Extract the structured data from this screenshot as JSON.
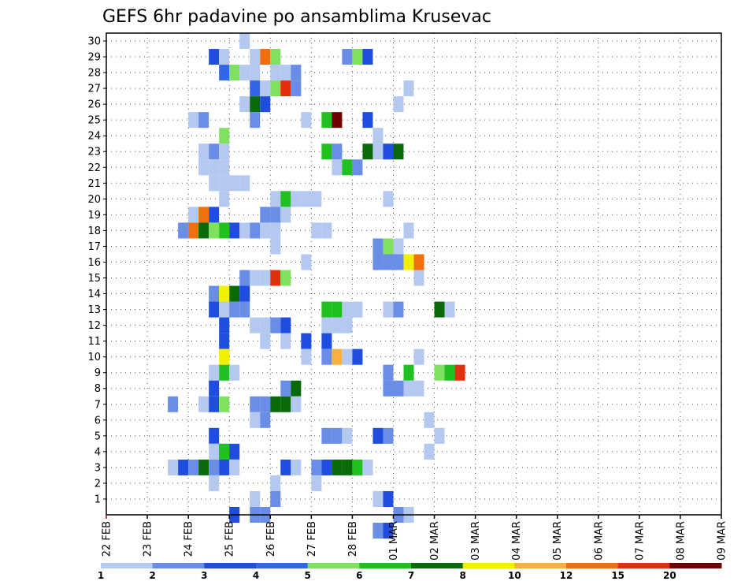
{
  "chart_data": {
    "type": "heatmap",
    "title": "GEFS 6hr padavine po ansamblima Krusevac",
    "y_ticks": [
      "1",
      "2",
      "3",
      "4",
      "5",
      "6",
      "7",
      "8",
      "9",
      "10",
      "11",
      "12",
      "13",
      "14",
      "15",
      "16",
      "17",
      "18",
      "19",
      "20",
      "21",
      "22",
      "23",
      "24",
      "25",
      "26",
      "27",
      "28",
      "29",
      "30"
    ],
    "ylim": [
      0,
      30
    ],
    "x_ticks": [
      "22 FEB",
      "23 FEB",
      "24 FEB",
      "25 FEB",
      "26 FEB",
      "27 FEB",
      "28 FEB",
      "01 MAR",
      "02 MAR",
      "03 MAR",
      "04 MAR",
      "05 MAR",
      "06 MAR",
      "07 MAR",
      "08 MAR",
      "09 MAR"
    ],
    "x_steps_per_day": 4,
    "xlim_steps": [
      0,
      60
    ],
    "grid": true,
    "legend": {
      "placement": "bottom",
      "labels": [
        "1",
        "2",
        "3",
        "4",
        "5",
        "6",
        "7",
        "8",
        "10",
        "12",
        "15",
        "20"
      ],
      "colors": [
        "#b4c8f0",
        "#6a8ee6",
        "#1f4de0",
        "#3366e6",
        "#80e060",
        "#20c020",
        "#0a6a0a",
        "#f0f000",
        "#f8b040",
        "#f07010",
        "#e03010",
        "#700000"
      ]
    },
    "cells": [
      [
        13,
        30,
        0
      ],
      [
        10,
        29,
        2
      ],
      [
        11,
        29,
        0
      ],
      [
        14,
        29,
        0
      ],
      [
        15,
        29,
        9
      ],
      [
        16,
        29,
        4
      ],
      [
        23,
        29,
        1
      ],
      [
        24,
        29,
        4
      ],
      [
        25,
        29,
        2
      ],
      [
        11,
        28,
        3
      ],
      [
        12,
        28,
        4
      ],
      [
        13,
        28,
        0
      ],
      [
        14,
        28,
        0
      ],
      [
        16,
        28,
        0
      ],
      [
        17,
        28,
        0
      ],
      [
        18,
        28,
        1
      ],
      [
        14,
        27,
        3
      ],
      [
        15,
        27,
        0
      ],
      [
        16,
        27,
        4
      ],
      [
        17,
        27,
        10
      ],
      [
        18,
        27,
        1
      ],
      [
        29,
        27,
        0
      ],
      [
        13,
        26,
        0
      ],
      [
        14,
        26,
        6
      ],
      [
        15,
        26,
        2
      ],
      [
        28,
        26,
        0
      ],
      [
        8,
        25,
        0
      ],
      [
        9,
        25,
        1
      ],
      [
        14,
        25,
        1
      ],
      [
        19,
        25,
        0
      ],
      [
        21,
        25,
        5
      ],
      [
        22,
        25,
        11
      ],
      [
        25,
        25,
        2
      ],
      [
        11,
        24,
        4
      ],
      [
        26,
        24,
        0
      ],
      [
        9,
        23,
        0
      ],
      [
        10,
        23,
        1
      ],
      [
        11,
        23,
        0
      ],
      [
        21,
        23,
        5
      ],
      [
        22,
        23,
        1
      ],
      [
        25,
        23,
        6
      ],
      [
        26,
        23,
        0
      ],
      [
        27,
        23,
        2
      ],
      [
        28,
        23,
        6
      ],
      [
        9,
        22,
        0
      ],
      [
        10,
        22,
        0
      ],
      [
        11,
        22,
        0
      ],
      [
        22,
        22,
        0
      ],
      [
        23,
        22,
        5
      ],
      [
        24,
        22,
        1
      ],
      [
        10,
        21,
        0
      ],
      [
        11,
        21,
        0
      ],
      [
        12,
        21,
        0
      ],
      [
        13,
        21,
        0
      ],
      [
        11,
        20,
        0
      ],
      [
        16,
        20,
        0
      ],
      [
        17,
        20,
        5
      ],
      [
        18,
        20,
        0
      ],
      [
        19,
        20,
        0
      ],
      [
        20,
        20,
        0
      ],
      [
        27,
        20,
        0
      ],
      [
        8,
        19,
        0
      ],
      [
        9,
        19,
        9
      ],
      [
        10,
        19,
        2
      ],
      [
        15,
        19,
        1
      ],
      [
        16,
        19,
        1
      ],
      [
        17,
        19,
        0
      ],
      [
        7,
        18,
        1
      ],
      [
        8,
        18,
        9
      ],
      [
        9,
        18,
        6
      ],
      [
        10,
        18,
        4
      ],
      [
        11,
        18,
        5
      ],
      [
        12,
        18,
        2
      ],
      [
        13,
        18,
        0
      ],
      [
        14,
        18,
        1
      ],
      [
        15,
        18,
        0
      ],
      [
        16,
        18,
        0
      ],
      [
        20,
        18,
        0
      ],
      [
        21,
        18,
        0
      ],
      [
        29,
        18,
        0
      ],
      [
        16,
        17,
        0
      ],
      [
        26,
        17,
        1
      ],
      [
        27,
        17,
        4
      ],
      [
        28,
        17,
        0
      ],
      [
        19,
        16,
        0
      ],
      [
        26,
        16,
        1
      ],
      [
        27,
        16,
        1
      ],
      [
        28,
        16,
        1
      ],
      [
        29,
        16,
        7
      ],
      [
        30,
        16,
        9
      ],
      [
        13,
        15,
        1
      ],
      [
        14,
        15,
        0
      ],
      [
        15,
        15,
        0
      ],
      [
        16,
        15,
        10
      ],
      [
        17,
        15,
        4
      ],
      [
        30,
        15,
        0
      ],
      [
        10,
        14,
        1
      ],
      [
        11,
        14,
        7
      ],
      [
        12,
        14,
        6
      ],
      [
        13,
        14,
        2
      ],
      [
        10,
        13,
        2
      ],
      [
        11,
        13,
        0
      ],
      [
        12,
        13,
        1
      ],
      [
        13,
        13,
        1
      ],
      [
        21,
        13,
        5
      ],
      [
        22,
        13,
        5
      ],
      [
        23,
        13,
        0
      ],
      [
        24,
        13,
        0
      ],
      [
        27,
        13,
        0
      ],
      [
        28,
        13,
        1
      ],
      [
        32,
        13,
        6
      ],
      [
        33,
        13,
        0
      ],
      [
        11,
        12,
        2
      ],
      [
        14,
        12,
        0
      ],
      [
        15,
        12,
        0
      ],
      [
        16,
        12,
        1
      ],
      [
        17,
        12,
        2
      ],
      [
        21,
        12,
        0
      ],
      [
        22,
        12,
        0
      ],
      [
        23,
        12,
        0
      ],
      [
        11,
        11,
        2
      ],
      [
        15,
        11,
        0
      ],
      [
        17,
        11,
        0
      ],
      [
        19,
        11,
        2
      ],
      [
        21,
        11,
        2
      ],
      [
        11,
        10,
        7
      ],
      [
        19,
        10,
        0
      ],
      [
        21,
        10,
        1
      ],
      [
        22,
        10,
        8
      ],
      [
        23,
        10,
        0
      ],
      [
        24,
        10,
        2
      ],
      [
        30,
        10,
        0
      ],
      [
        10,
        9,
        0
      ],
      [
        11,
        9,
        5
      ],
      [
        12,
        9,
        0
      ],
      [
        27,
        9,
        1
      ],
      [
        29,
        9,
        5
      ],
      [
        32,
        9,
        4
      ],
      [
        33,
        9,
        5
      ],
      [
        34,
        9,
        10
      ],
      [
        10,
        8,
        2
      ],
      [
        17,
        8,
        1
      ],
      [
        18,
        8,
        6
      ],
      [
        27,
        8,
        1
      ],
      [
        28,
        8,
        1
      ],
      [
        29,
        8,
        0
      ],
      [
        30,
        8,
        0
      ],
      [
        6,
        7,
        1
      ],
      [
        9,
        7,
        0
      ],
      [
        10,
        7,
        2
      ],
      [
        11,
        7,
        4
      ],
      [
        14,
        7,
        1
      ],
      [
        15,
        7,
        1
      ],
      [
        16,
        7,
        6
      ],
      [
        17,
        7,
        6
      ],
      [
        18,
        7,
        0
      ],
      [
        14,
        6,
        0
      ],
      [
        15,
        6,
        1
      ],
      [
        31,
        6,
        0
      ],
      [
        10,
        5,
        2
      ],
      [
        21,
        5,
        1
      ],
      [
        22,
        5,
        1
      ],
      [
        23,
        5,
        0
      ],
      [
        26,
        5,
        2
      ],
      [
        27,
        5,
        1
      ],
      [
        32,
        5,
        0
      ],
      [
        10,
        4,
        0
      ],
      [
        11,
        4,
        2
      ],
      [
        11,
        4,
        5
      ],
      [
        12,
        4,
        2
      ],
      [
        31,
        4,
        0
      ],
      [
        6,
        3,
        0
      ],
      [
        7,
        3,
        2
      ],
      [
        8,
        3,
        1
      ],
      [
        9,
        3,
        6
      ],
      [
        10,
        3,
        1
      ],
      [
        11,
        3,
        2
      ],
      [
        12,
        3,
        0
      ],
      [
        17,
        3,
        2
      ],
      [
        18,
        3,
        0
      ],
      [
        20,
        3,
        1
      ],
      [
        21,
        3,
        2
      ],
      [
        22,
        3,
        6
      ],
      [
        23,
        3,
        6
      ],
      [
        24,
        3,
        5
      ],
      [
        25,
        3,
        0
      ],
      [
        10,
        2,
        0
      ],
      [
        16,
        2,
        0
      ],
      [
        20,
        2,
        0
      ],
      [
        14,
        1,
        0
      ],
      [
        16,
        1,
        1
      ],
      [
        26,
        1,
        0
      ],
      [
        27,
        1,
        2
      ],
      [
        12,
        0,
        2
      ],
      [
        14,
        0,
        1
      ],
      [
        15,
        0,
        1
      ],
      [
        28,
        0,
        1
      ],
      [
        29,
        0,
        0
      ],
      [
        26,
        -1,
        1
      ],
      [
        27,
        -1,
        2
      ]
    ]
  }
}
